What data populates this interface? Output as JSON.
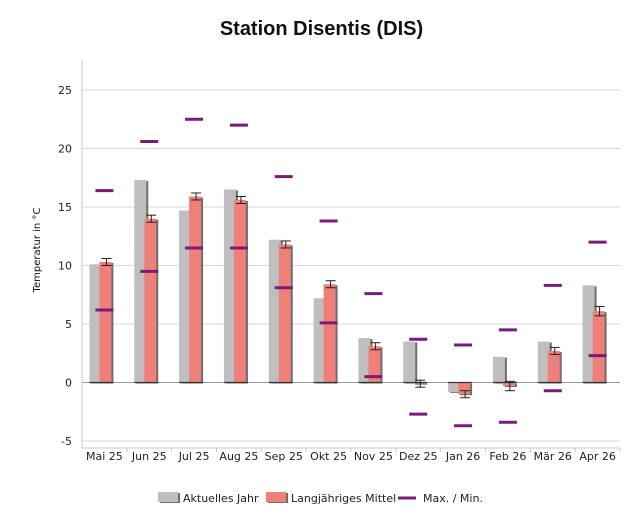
{
  "chart_data": {
    "type": "bar",
    "title": "Station Disentis (DIS)",
    "ylabel": "Temperatur in °C",
    "xlabel": "",
    "ylim": [
      -5,
      27
    ],
    "yticks": [
      -5,
      0,
      5,
      10,
      15,
      20,
      25
    ],
    "grid": true,
    "legend_position": "bottom",
    "categories": [
      "Mai 25",
      "Jun 25",
      "Jul 25",
      "Aug 25",
      "Sep 25",
      "Okt 25",
      "Nov 25",
      "Dez 25",
      "Jan 26",
      "Feb 26",
      "Mär 26",
      "Apr 26"
    ],
    "series": [
      {
        "name": "Aktuelles Jahr",
        "color": "#bfbfbf",
        "values": [
          10.1,
          17.3,
          14.7,
          16.5,
          12.2,
          7.2,
          3.8,
          3.5,
          -0.8,
          2.2,
          3.5,
          8.3
        ]
      },
      {
        "name": "Langjähriges Mittel",
        "color": "#ee8079",
        "values": [
          10.3,
          14.0,
          15.9,
          15.6,
          11.8,
          8.4,
          3.1,
          -0.1,
          -1.0,
          -0.3,
          2.7,
          6.1
        ],
        "error": [
          0.3,
          0.3,
          0.3,
          0.3,
          0.3,
          0.3,
          0.3,
          0.3,
          0.3,
          0.4,
          0.3,
          0.4
        ]
      },
      {
        "name": "Max. / Min.",
        "color": "#7a1a7a",
        "max": [
          16.4,
          20.6,
          22.5,
          22.0,
          17.6,
          13.8,
          7.6,
          3.7,
          3.2,
          4.5,
          8.3,
          12.0
        ],
        "min": [
          6.2,
          9.5,
          11.5,
          11.5,
          8.1,
          5.1,
          0.5,
          -2.7,
          -3.7,
          -3.4,
          -0.7,
          2.3
        ]
      }
    ]
  }
}
